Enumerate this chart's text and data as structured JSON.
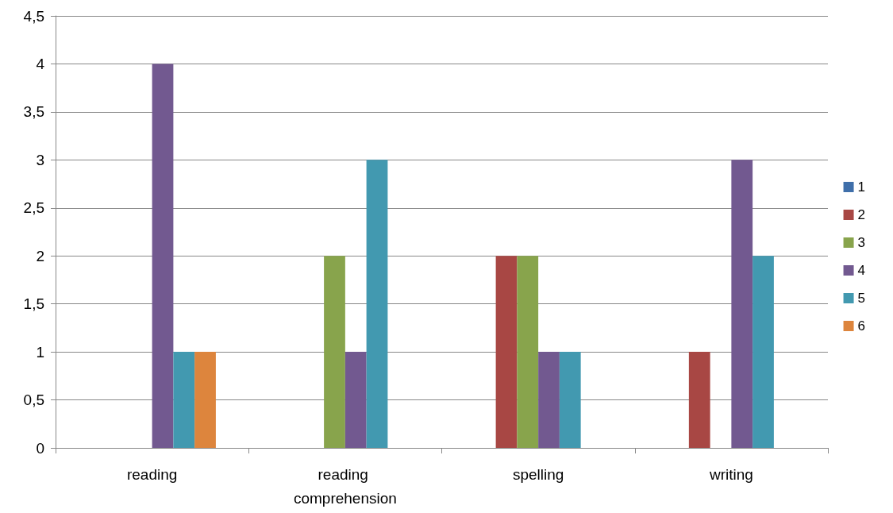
{
  "chart_data": {
    "type": "bar",
    "categories": [
      "reading",
      "reading comprehension",
      "spelling",
      "writing"
    ],
    "series": [
      {
        "name": "1",
        "color": "#3f6faa",
        "values": [
          0,
          0,
          0,
          0
        ]
      },
      {
        "name": "2",
        "color": "#a84744",
        "values": [
          0,
          0,
          2,
          1
        ]
      },
      {
        "name": "3",
        "color": "#88a44c",
        "values": [
          0,
          2,
          2,
          0
        ]
      },
      {
        "name": "4",
        "color": "#725990",
        "values": [
          4,
          1,
          1,
          3
        ]
      },
      {
        "name": "5",
        "color": "#4299b0",
        "values": [
          1,
          3,
          1,
          2
        ]
      },
      {
        "name": "6",
        "color": "#dd853d",
        "values": [
          1,
          0,
          0,
          0
        ]
      }
    ],
    "ylim": [
      0,
      4.5
    ],
    "yticks": [
      0,
      {
        "value": 0.5,
        "label": "0,5"
      },
      1,
      {
        "value": 1.5,
        "label": "1,5"
      },
      2,
      {
        "value": 2.5,
        "label": "2,5"
      },
      3,
      {
        "value": 3.5,
        "label": "3,5"
      },
      4,
      {
        "value": 4.5,
        "label": "4,5"
      }
    ],
    "grid": "y",
    "legend": "right"
  }
}
